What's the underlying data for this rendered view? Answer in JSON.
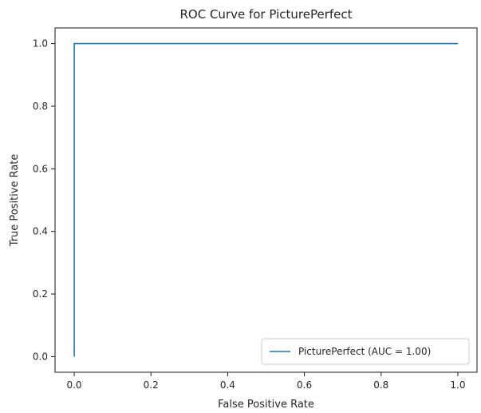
{
  "chart_data": {
    "type": "line",
    "title": "ROC Curve for PicturePerfect",
    "xlabel": "False Positive Rate",
    "ylabel": "True Positive Rate",
    "xlim": [
      -0.05,
      1.05
    ],
    "ylim": [
      -0.05,
      1.05
    ],
    "xticks": [
      0.0,
      0.2,
      0.4,
      0.6,
      0.8,
      1.0
    ],
    "yticks": [
      0.0,
      0.2,
      0.4,
      0.6,
      0.8,
      1.0
    ],
    "xtick_labels": [
      "0.0",
      "0.2",
      "0.4",
      "0.6",
      "0.8",
      "1.0"
    ],
    "ytick_labels": [
      "0.0",
      "0.2",
      "0.4",
      "0.6",
      "0.8",
      "1.0"
    ],
    "grid": false,
    "legend_position": "bottom-right",
    "series": [
      {
        "name": "PicturePerfect (AUC = 1.00)",
        "color": "#1f77b4",
        "x": [
          0.0,
          0.0,
          1.0
        ],
        "y": [
          0.0,
          1.0,
          1.0
        ]
      }
    ]
  }
}
